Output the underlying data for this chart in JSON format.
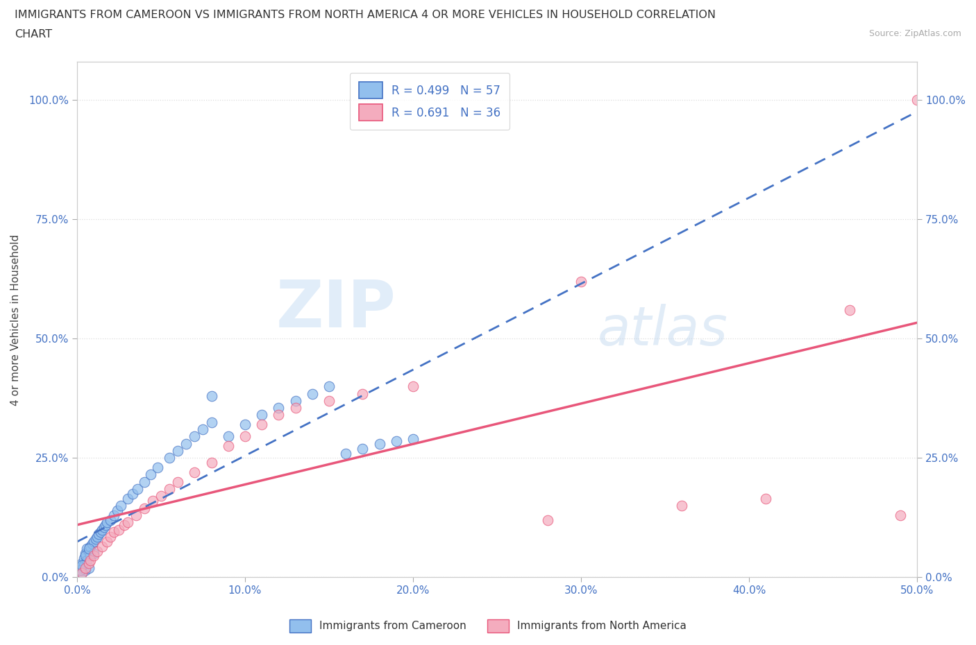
{
  "title_line1": "IMMIGRANTS FROM CAMEROON VS IMMIGRANTS FROM NORTH AMERICA 4 OR MORE VEHICLES IN HOUSEHOLD CORRELATION",
  "title_line2": "CHART",
  "source": "Source: ZipAtlas.com",
  "ylabel": "4 or more Vehicles in Household",
  "xlim": [
    0.0,
    0.5
  ],
  "ylim": [
    0.0,
    1.08
  ],
  "xtick_labels": [
    "0.0%",
    "10.0%",
    "20.0%",
    "30.0%",
    "40.0%",
    "50.0%"
  ],
  "ytick_labels": [
    "0.0%",
    "25.0%",
    "50.0%",
    "75.0%",
    "100.0%"
  ],
  "ytick_positions": [
    0.0,
    0.25,
    0.5,
    0.75,
    1.0
  ],
  "xtick_positions": [
    0.0,
    0.1,
    0.2,
    0.3,
    0.4,
    0.5
  ],
  "cameroon_color": "#92BFED",
  "north_america_color": "#F4ACBE",
  "cameroon_line_color": "#4472C4",
  "north_america_line_color": "#E8567A",
  "R_cameroon": 0.499,
  "N_cameroon": 57,
  "R_north_america": 0.691,
  "N_north_america": 36,
  "watermark_zip": "ZIP",
  "watermark_atlas": "atlas",
  "legend_label_cameroon": "Immigrants from Cameroon",
  "legend_label_north_america": "Immigrants from North America",
  "cam_line_slope": 0.55,
  "cam_line_intercept": 0.005,
  "na_line_slope": 1.02,
  "na_line_intercept": -0.02,
  "cameroon_x": [
    0.002,
    0.003,
    0.003,
    0.004,
    0.004,
    0.005,
    0.005,
    0.006,
    0.006,
    0.007,
    0.007,
    0.008,
    0.008,
    0.009,
    0.01,
    0.01,
    0.011,
    0.012,
    0.013,
    0.014,
    0.015,
    0.016,
    0.017,
    0.018,
    0.02,
    0.022,
    0.024,
    0.026,
    0.03,
    0.033,
    0.036,
    0.04,
    0.044,
    0.048,
    0.055,
    0.06,
    0.065,
    0.07,
    0.075,
    0.08,
    0.09,
    0.1,
    0.11,
    0.12,
    0.13,
    0.14,
    0.15,
    0.16,
    0.17,
    0.18,
    0.19,
    0.2,
    0.08,
    0.002,
    0.003,
    0.005,
    0.007
  ],
  "cameroon_y": [
    0.02,
    0.03,
    0.01,
    0.04,
    0.025,
    0.05,
    0.015,
    0.06,
    0.035,
    0.055,
    0.02,
    0.065,
    0.045,
    0.07,
    0.075,
    0.05,
    0.08,
    0.085,
    0.09,
    0.095,
    0.1,
    0.105,
    0.11,
    0.115,
    0.12,
    0.13,
    0.14,
    0.15,
    0.165,
    0.175,
    0.185,
    0.2,
    0.215,
    0.23,
    0.25,
    0.265,
    0.28,
    0.295,
    0.31,
    0.325,
    0.295,
    0.32,
    0.34,
    0.355,
    0.37,
    0.385,
    0.4,
    0.26,
    0.27,
    0.28,
    0.285,
    0.29,
    0.38,
    0.015,
    0.025,
    0.045,
    0.06
  ],
  "north_america_x": [
    0.003,
    0.005,
    0.007,
    0.008,
    0.01,
    0.012,
    0.015,
    0.018,
    0.02,
    0.022,
    0.025,
    0.028,
    0.03,
    0.035,
    0.04,
    0.045,
    0.05,
    0.055,
    0.06,
    0.07,
    0.08,
    0.09,
    0.1,
    0.11,
    0.12,
    0.13,
    0.15,
    0.17,
    0.2,
    0.28,
    0.36,
    0.41,
    0.46,
    0.49,
    0.5,
    0.3
  ],
  "north_america_y": [
    0.01,
    0.02,
    0.03,
    0.035,
    0.045,
    0.055,
    0.065,
    0.075,
    0.085,
    0.095,
    0.1,
    0.11,
    0.115,
    0.13,
    0.145,
    0.16,
    0.17,
    0.185,
    0.2,
    0.22,
    0.24,
    0.275,
    0.295,
    0.32,
    0.34,
    0.355,
    0.37,
    0.385,
    0.4,
    0.12,
    0.15,
    0.165,
    0.56,
    0.13,
    1.0,
    0.62
  ],
  "background_color": "#FFFFFF",
  "grid_color": "#DDDDDD"
}
